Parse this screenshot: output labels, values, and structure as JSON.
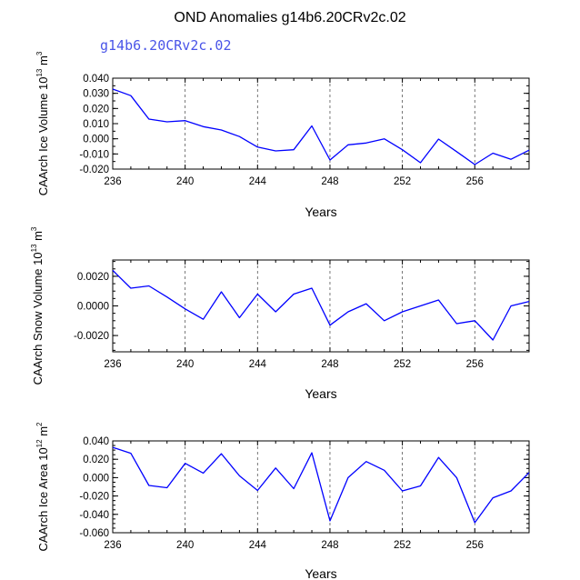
{
  "title": "OND Anomalies g14b6.20CRv2c.02",
  "subtitle": "g14b6.20CRv2c.02",
  "colors": {
    "line": "#0000ff",
    "grid": "#555555",
    "axis": "#000000",
    "subtitle": "#4a55e8"
  },
  "chart_data": [
    {
      "type": "line",
      "xlabel": "Years",
      "ylabel_text": "CAArch Ice Volume 10",
      "ylabel_exp": "13",
      "ylabel_unit": " m",
      "ylabel_unit_exp": "3",
      "xlim": [
        236,
        259
      ],
      "ylim": [
        -0.02,
        0.04
      ],
      "xticks": [
        236,
        240,
        244,
        248,
        252,
        256
      ],
      "yticks": [
        -0.02,
        -0.01,
        0.0,
        0.01,
        0.02,
        0.03,
        0.04
      ],
      "ytick_labels": [
        "-0.020",
        "-0.010",
        "0.000",
        "0.010",
        "0.020",
        "0.030",
        "0.040"
      ],
      "ytick_minor": 0.005,
      "vgrid": [
        240,
        244,
        248,
        252,
        256
      ],
      "x": [
        236,
        237,
        238,
        239,
        240,
        241,
        242,
        243,
        244,
        245,
        246,
        247,
        248,
        249,
        250,
        251,
        252,
        253,
        254,
        255,
        256,
        257,
        258,
        259
      ],
      "values": [
        0.0328,
        0.0285,
        0.013,
        0.0112,
        0.012,
        0.008,
        0.0058,
        0.0015,
        -0.0055,
        -0.008,
        -0.0072,
        0.0085,
        -0.014,
        -0.004,
        -0.0028,
        0.0,
        -0.0072,
        -0.0158,
        -0.0002,
        -0.0085,
        -0.017,
        -0.0095,
        -0.0135,
        -0.0075
      ]
    },
    {
      "type": "line",
      "xlabel": "Years",
      "ylabel_text": "CAArch Snow Volume 10",
      "ylabel_exp": "13",
      "ylabel_unit": " m",
      "ylabel_unit_exp": "3",
      "xlim": [
        236,
        259
      ],
      "ylim": [
        -0.0031,
        0.0031
      ],
      "xticks": [
        236,
        240,
        244,
        248,
        252,
        256
      ],
      "yticks": [
        -0.002,
        0.0,
        0.002
      ],
      "ytick_labels": [
        "-0.0020",
        "0.0000",
        "0.0020"
      ],
      "ytick_minor": 0.0005,
      "vgrid": [
        240,
        244,
        248,
        252,
        256
      ],
      "x": [
        236,
        237,
        238,
        239,
        240,
        241,
        242,
        243,
        244,
        245,
        246,
        247,
        248,
        249,
        250,
        251,
        252,
        253,
        254,
        255,
        256,
        257,
        258,
        259
      ],
      "values": [
        0.0024,
        0.0012,
        0.00135,
        0.0006,
        -0.0002,
        -0.0009,
        0.00095,
        -0.0008,
        0.0008,
        -0.0004,
        0.0008,
        0.0012,
        -0.0013,
        -0.0004,
        0.00015,
        -0.001,
        -0.0004,
        0.0,
        0.0004,
        -0.0012,
        -0.001,
        -0.0023,
        0.0,
        0.0003
      ]
    },
    {
      "type": "line",
      "xlabel": "Years",
      "ylabel_text": "CAArch Ice Area 10",
      "ylabel_exp": "12",
      "ylabel_unit": " m",
      "ylabel_unit_exp": "2",
      "xlim": [
        236,
        259
      ],
      "ylim": [
        -0.06,
        0.04
      ],
      "xticks": [
        236,
        240,
        244,
        248,
        252,
        256
      ],
      "yticks": [
        -0.06,
        -0.04,
        -0.02,
        0.0,
        0.02,
        0.04
      ],
      "ytick_labels": [
        "-0.060",
        "-0.040",
        "-0.020",
        "0.000",
        "0.020",
        "0.040"
      ],
      "ytick_minor": 0.005,
      "vgrid": [
        240,
        244,
        248,
        252,
        256
      ],
      "x": [
        236,
        237,
        238,
        239,
        240,
        241,
        242,
        243,
        244,
        245,
        246,
        247,
        248,
        249,
        250,
        251,
        252,
        253,
        254,
        255,
        256,
        257,
        258,
        259
      ],
      "values": [
        0.033,
        0.0265,
        -0.0085,
        -0.011,
        0.0155,
        0.005,
        0.026,
        0.002,
        -0.014,
        0.0105,
        -0.012,
        0.027,
        -0.047,
        0.0,
        0.0175,
        0.008,
        -0.0145,
        -0.009,
        0.022,
        0.0,
        -0.049,
        -0.022,
        -0.0145,
        0.0055
      ]
    }
  ]
}
